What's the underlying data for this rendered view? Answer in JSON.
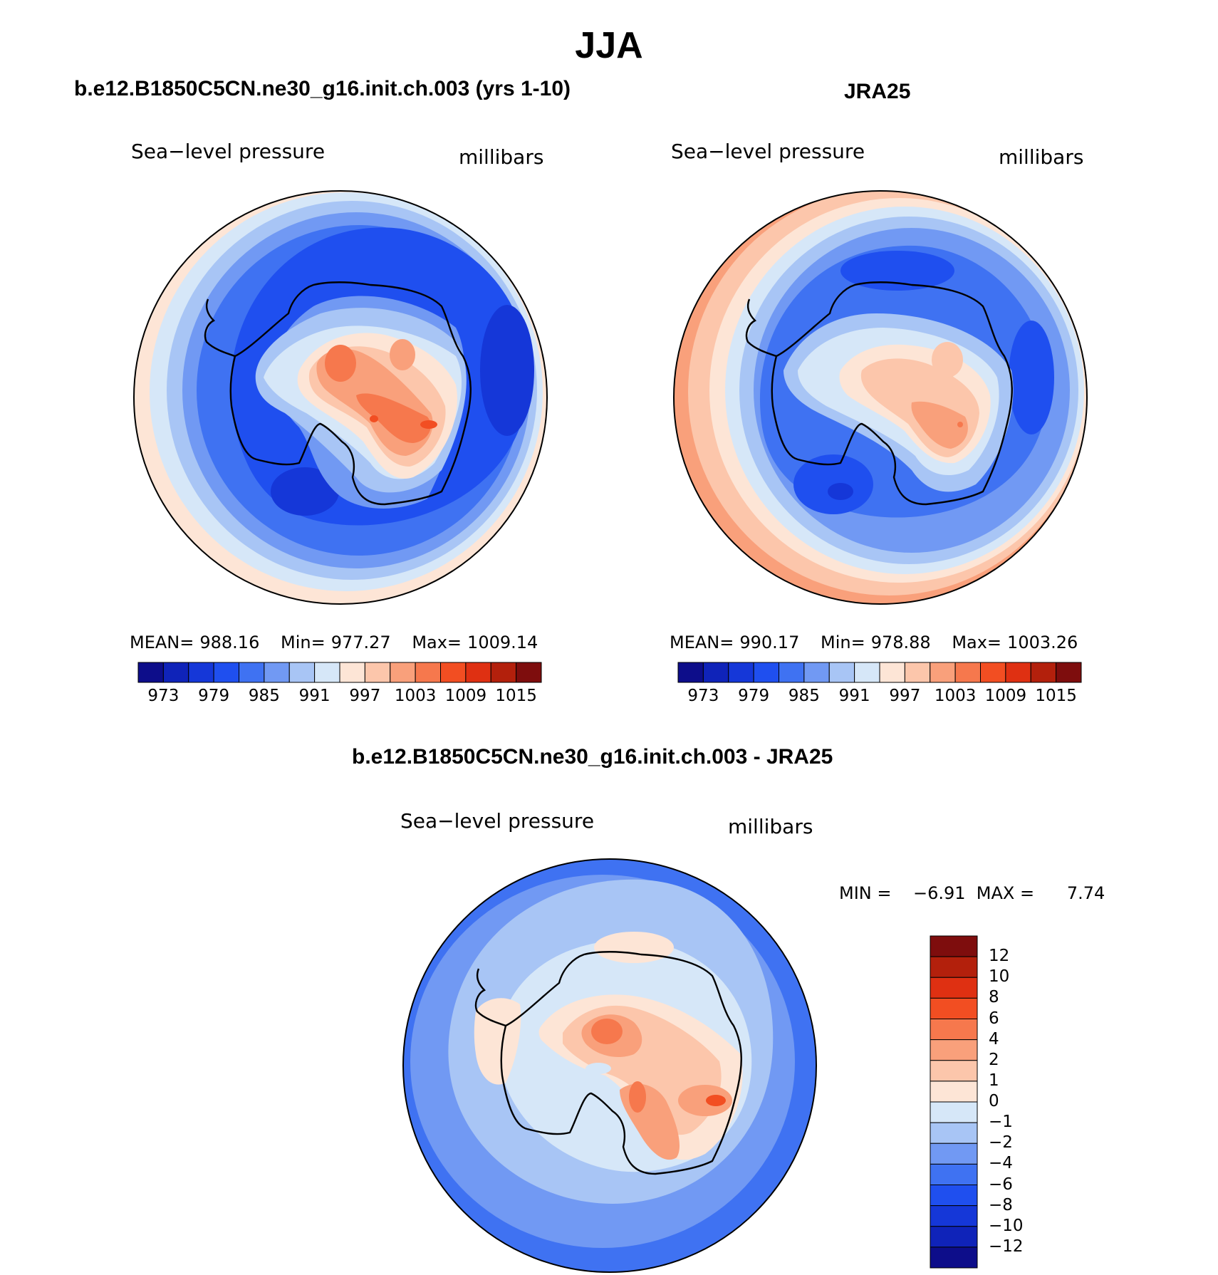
{
  "figure": {
    "season_title": "JJA",
    "panels": [
      {
        "title": "b.e12.B1850C5CN.ne30_g16.init.ch.003 (yrs 1-10)",
        "variable": "Sea−level pressure",
        "units": "millibars",
        "mean_label": "MEAN=",
        "mean": "988.16",
        "min_label": "Min=",
        "min": "977.27",
        "max_label": "Max=",
        "max": "1009.14"
      },
      {
        "title": "JRA25",
        "variable": "Sea−level pressure",
        "units": "millibars",
        "mean_label": "MEAN=",
        "mean": "990.17",
        "min_label": "Min=",
        "min": "978.88",
        "max_label": "Max=",
        "max": "1003.26"
      },
      {
        "title": "b.e12.B1850C5CN.ne30_g16.init.ch.003 - JRA25",
        "variable": "Sea−level pressure",
        "units": "millibars",
        "minmax_text": "MIN =    −6.91  MAX =      7.74"
      }
    ]
  },
  "colorbars": {
    "absolute": {
      "labels": [
        "973",
        "979",
        "985",
        "991",
        "997",
        "1003",
        "1009",
        "1015"
      ],
      "colors": [
        "#0d0d8a",
        "#0f23b9",
        "#1537d8",
        "#1f4fef",
        "#3f72f2",
        "#7199f3",
        "#a8c5f5",
        "#d6e7f8",
        "#fde5d6",
        "#fcc6ab",
        "#f9a07b",
        "#f6784d",
        "#f24e22",
        "#df3012",
        "#b3200c",
        "#7e0d0d"
      ]
    },
    "difference": {
      "labels": [
        "12",
        "10",
        "8",
        "6",
        "4",
        "2",
        "1",
        "0",
        "−1",
        "−2",
        "−4",
        "−6",
        "−8",
        "−10",
        "−12"
      ],
      "colors": [
        "#7e0d0d",
        "#b3200c",
        "#df3012",
        "#f24e22",
        "#f6784d",
        "#f9a07b",
        "#fcc6ab",
        "#fde5d6",
        "#d6e7f8",
        "#a8c5f5",
        "#7199f3",
        "#3f72f2",
        "#1f4fef",
        "#1537d8",
        "#0f23b9",
        "#0d0d8a"
      ]
    }
  },
  "map_colors": {
    "deep_blue": "#0f2fc8",
    "blue": "#1f4fef",
    "mid_blue": "#3f72f2",
    "light_blue": "#7199f3",
    "pale_blue": "#a8c5f5",
    "paler_blue": "#d6e7f8",
    "cream": "#fde5d6",
    "peach": "#fcc6ab",
    "salmon": "#f9a07b",
    "orange": "#f6784d",
    "red": "#f24e22"
  }
}
